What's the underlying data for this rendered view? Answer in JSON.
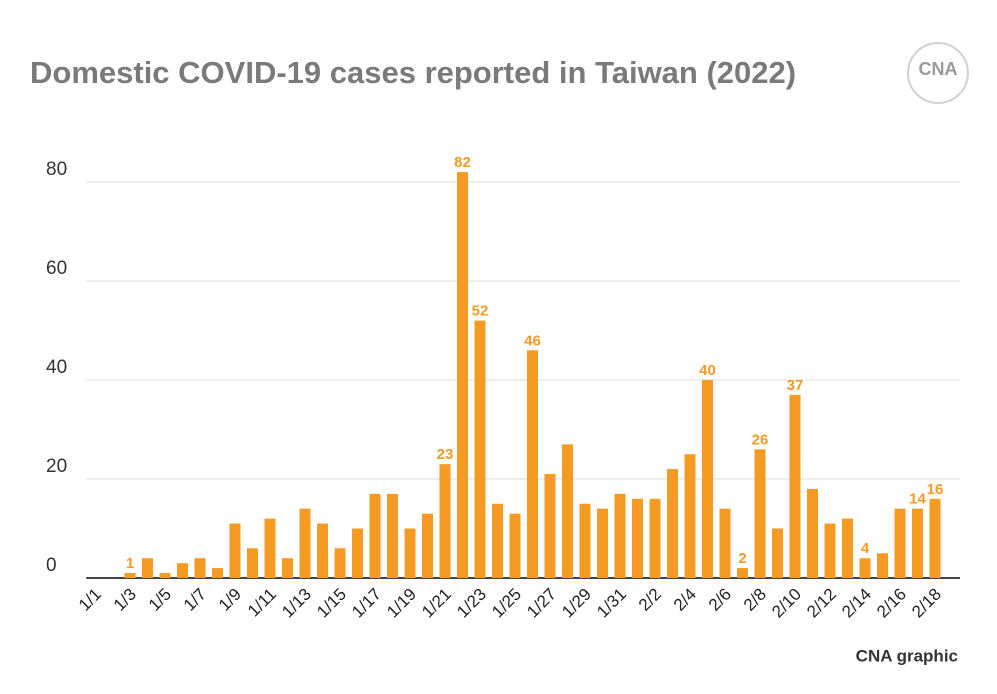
{
  "chart_data": {
    "type": "bar",
    "title": "Domestic COVID-19 cases reported in Taiwan (2022)",
    "logo": "CNA",
    "source": "CNA graphic",
    "color": "#f59a23",
    "grid": true,
    "categories": [
      "1/1",
      null,
      "1/3",
      null,
      "1/5",
      null,
      "1/7",
      null,
      "1/9",
      null,
      "1/11",
      null,
      "1/13",
      null,
      "1/15",
      null,
      "1/17",
      null,
      "1/19",
      null,
      "1/21",
      null,
      "1/23",
      null,
      "1/25",
      null,
      "1/27",
      null,
      "1/29",
      null,
      "1/31",
      null,
      "2/2",
      null,
      "2/4",
      null,
      "2/6",
      null,
      "2/8",
      null,
      "2/10",
      null,
      "2/12",
      null,
      "2/14",
      null,
      "2/16",
      null,
      "2/18"
    ],
    "values": [
      0,
      0,
      1,
      4,
      1,
      3,
      4,
      2,
      11,
      6,
      12,
      4,
      14,
      11,
      6,
      10,
      17,
      17,
      10,
      13,
      23,
      82,
      52,
      15,
      13,
      46,
      21,
      27,
      15,
      14,
      17,
      16,
      16,
      22,
      25,
      40,
      14,
      2,
      26,
      10,
      37,
      18,
      11,
      12,
      4,
      5,
      14,
      14,
      16
    ],
    "value_labels": [
      null,
      null,
      "1",
      null,
      null,
      null,
      null,
      null,
      null,
      null,
      null,
      null,
      null,
      null,
      null,
      null,
      null,
      null,
      null,
      null,
      "23",
      "82",
      "52",
      null,
      null,
      "46",
      null,
      null,
      null,
      null,
      null,
      null,
      null,
      null,
      null,
      "40",
      null,
      "2",
      "26",
      null,
      "37",
      null,
      null,
      null,
      "4",
      null,
      null,
      "14",
      "16"
    ],
    "ylim": [
      0,
      85
    ],
    "yticks": [
      0,
      20,
      40,
      60,
      80
    ]
  }
}
